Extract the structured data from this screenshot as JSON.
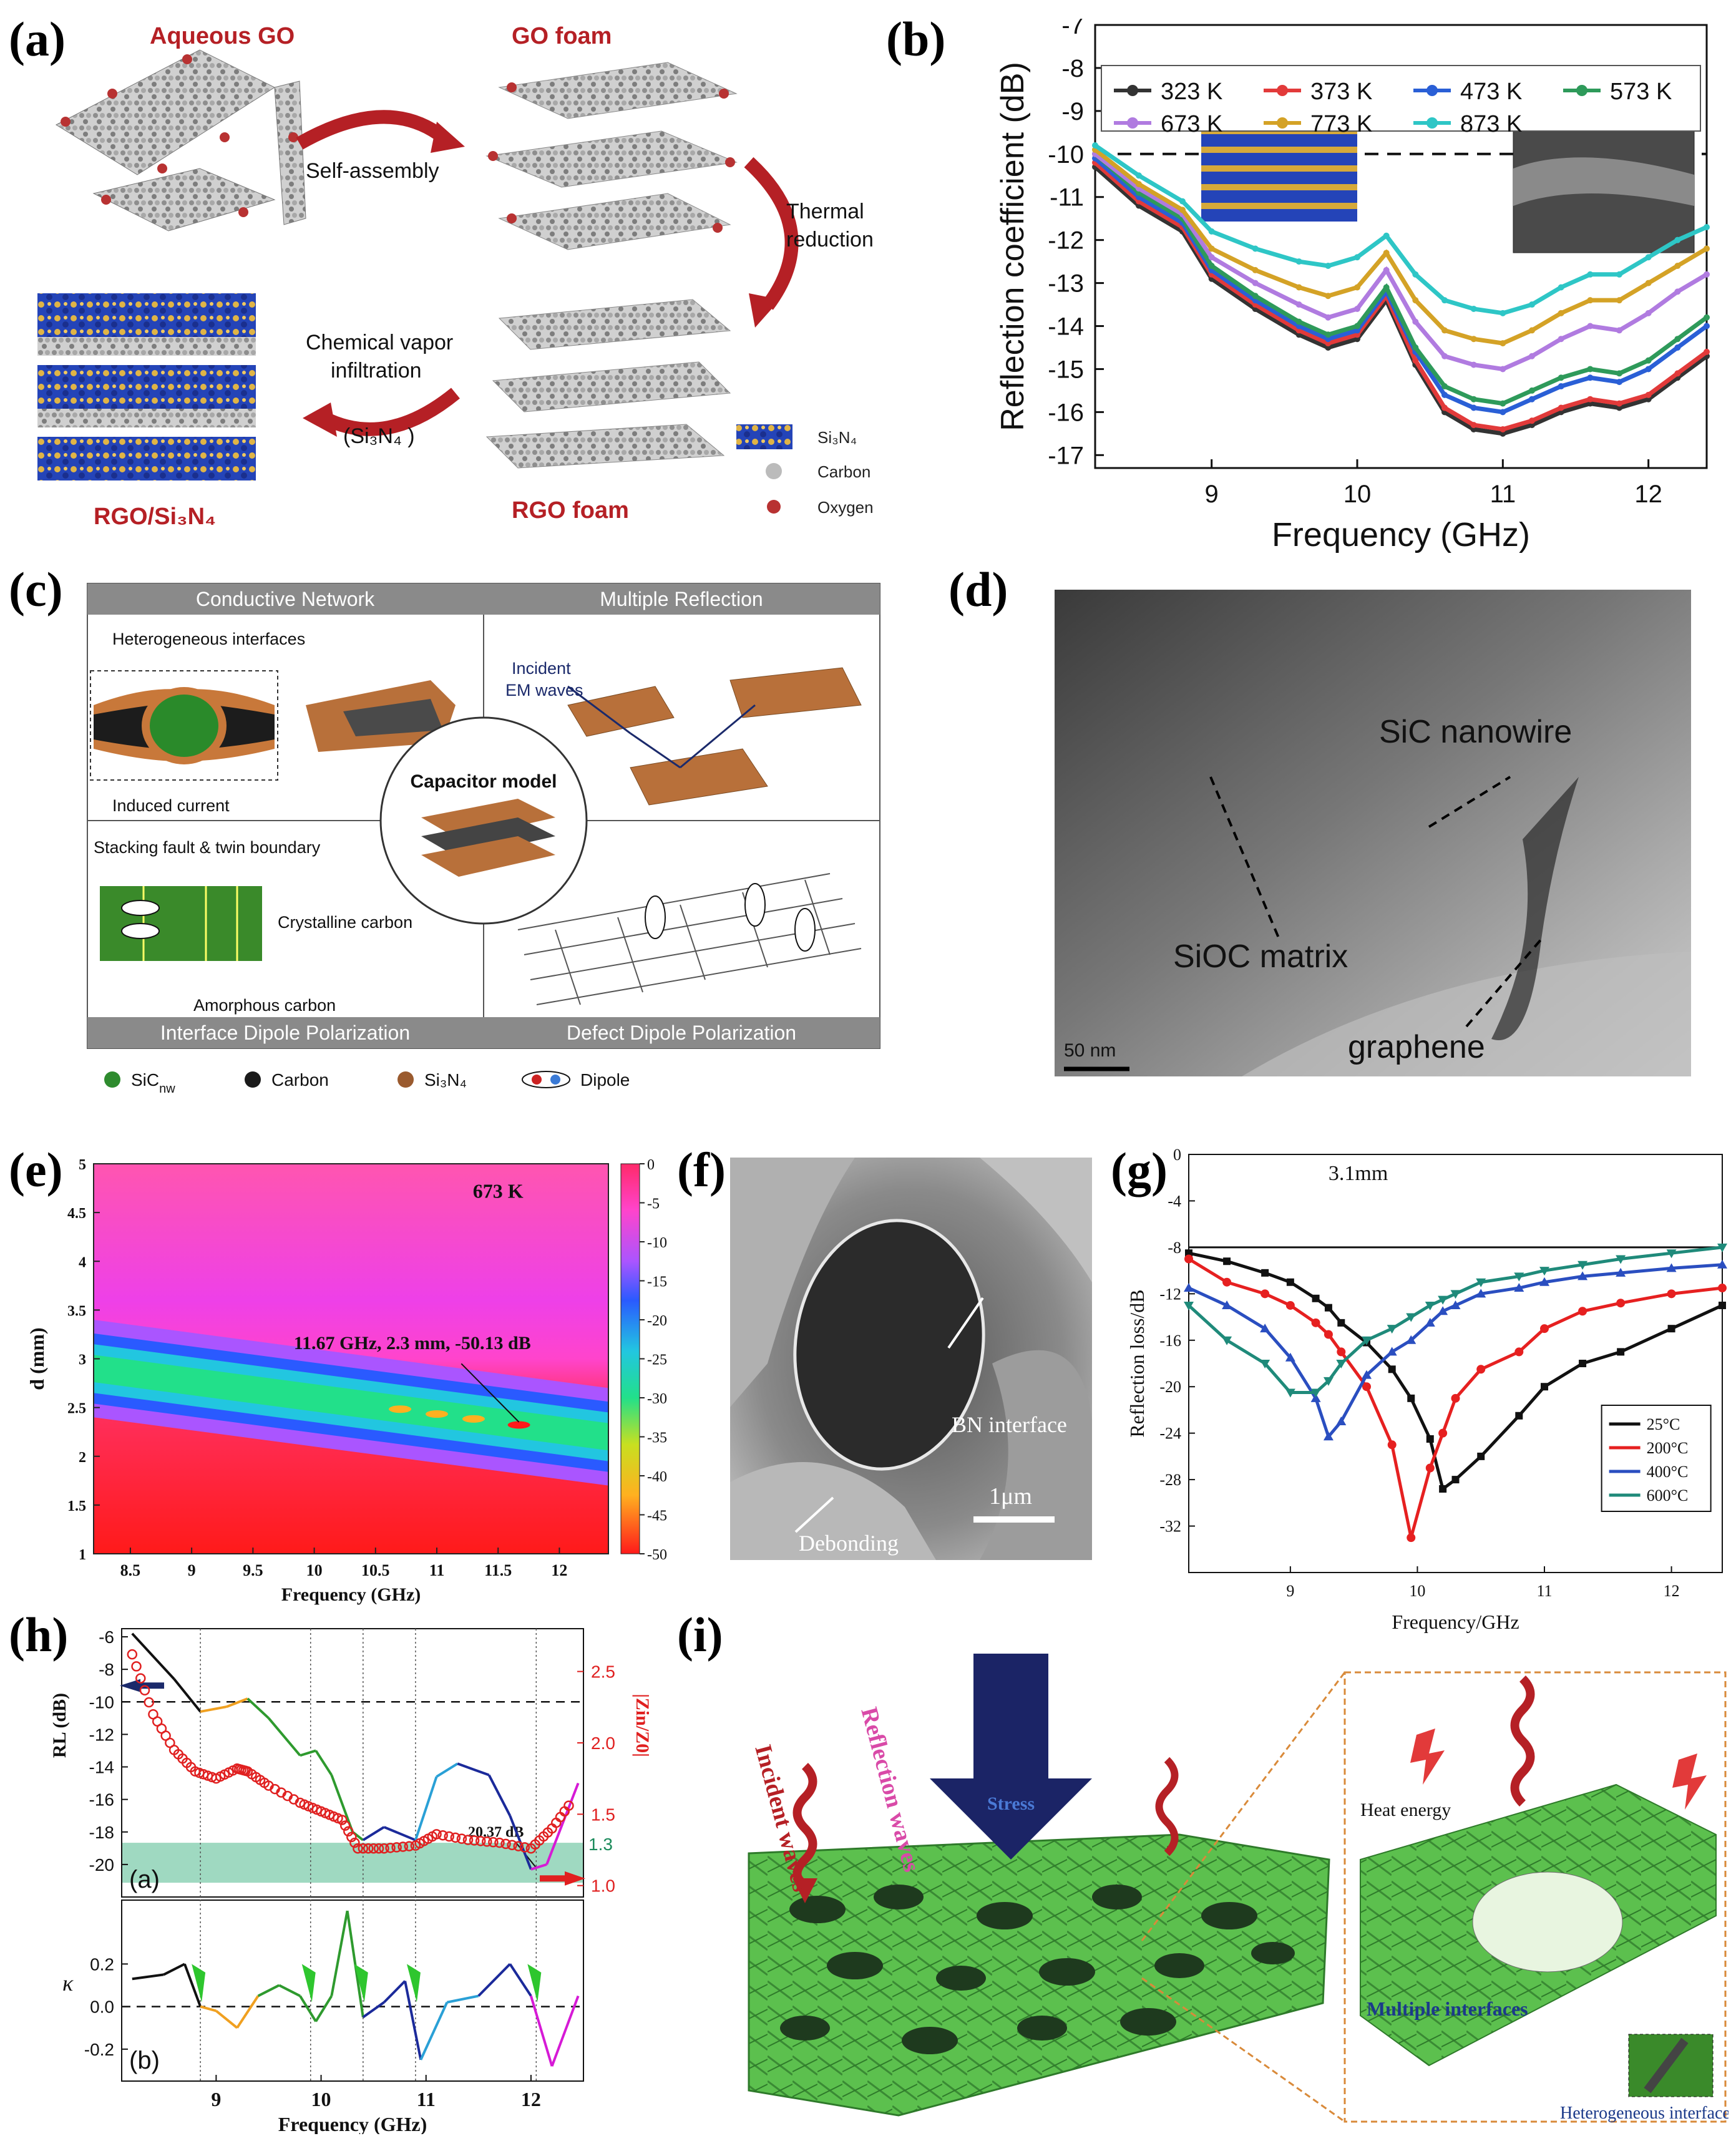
{
  "labels": {
    "a": "(a)",
    "b": "(b)",
    "c": "(c)",
    "d": "(d)",
    "e": "(e)",
    "f": "(f)",
    "g": "(g)",
    "h": "(h)",
    "i": "(i)"
  },
  "colors": {
    "red": "#b52025",
    "si_blue": "#1b3fa8",
    "si_gold": "#d6a93a",
    "carbon": "#9e9e9e",
    "oxygen": "#b83232",
    "green": "#53b84c",
    "navy": "#1b2a6b"
  },
  "panel_a": {
    "aqueous_go": "Aqueous GO",
    "go_foam": "GO foam",
    "self_assembly": "Self-assembly",
    "thermal": "Thermal",
    "reduction": "reduction",
    "cvi_line1": "Chemical vapor",
    "cvi_line2": "infiltration",
    "cvi_line3": "(Si₃N₄ )",
    "rgo_foam": "RGO foam",
    "rgo_si3n4": "RGO/Si₃N₄",
    "legend": [
      {
        "label": "Si₃N₄",
        "icon": "si3n4-lattice-icon"
      },
      {
        "label": "Carbon",
        "icon": "carbon-atom-icon"
      },
      {
        "label": "Oxygen",
        "icon": "oxygen-atom-icon"
      }
    ]
  },
  "panel_c": {
    "conductive": "Conductive Network",
    "multiple": "Multiple Reflection",
    "interface_dipole": "Interface Dipole Polarization",
    "defect_dipole": "Defect Dipole Polarization",
    "heterogeneous": "Heterogeneous interfaces",
    "induced": "Induced current",
    "incident_1": "Incident",
    "incident_2": "EM waves",
    "capacitor": "Capacitor model",
    "stacking": "Stacking fault & twin boundary",
    "crystalline": "Crystalline carbon",
    "amorphous": "Amorphous carbon",
    "legend": [
      {
        "label": "SiC",
        "sub": "nw",
        "color": "#2e8b2e"
      },
      {
        "label": "Carbon",
        "sub": "",
        "color": "#1a1a1a"
      },
      {
        "label": "Si₃N₄",
        "sub": "",
        "color": "#9a5a2e"
      },
      {
        "label": "Dipole",
        "sub": "",
        "color": "#c22"
      }
    ]
  },
  "panel_d": {
    "sic_nanowire": "SiC nanowire",
    "sioc_matrix": "SiOC matrix",
    "graphene": "graphene",
    "scale": "50 nm"
  },
  "panel_f": {
    "bn_interface": "BN interface",
    "debonding": "Debonding",
    "scale": "1μm"
  },
  "panel_i": {
    "incident": "Incident waves",
    "reflection": "Reflection waves",
    "stress": "Stress",
    "heat": "Heat energy",
    "multiple": "Multiple interfaces",
    "heterogeneous": "Heterogeneous interface"
  },
  "chart_data": [
    {
      "id": "b",
      "type": "line",
      "title": "",
      "xlabel": "Frequency (GHz)",
      "ylabel": "Reflection coefficient (dB)",
      "xlim": [
        8.2,
        12.4
      ],
      "ylim": [
        -17.3,
        -7
      ],
      "xticks": [
        "9",
        "10",
        "11",
        "12"
      ],
      "yticks": [
        "-7",
        "-8",
        "-9",
        "-10",
        "-11",
        "-12",
        "-13",
        "-14",
        "-15",
        "-16",
        "-17"
      ],
      "threshold": -10,
      "x": [
        8.2,
        8.5,
        8.8,
        9.0,
        9.3,
        9.6,
        9.8,
        10.0,
        10.2,
        10.4,
        10.6,
        10.8,
        11.0,
        11.2,
        11.4,
        11.6,
        11.8,
        12.0,
        12.2,
        12.4
      ],
      "series": [
        {
          "name": "323 K",
          "color": "#333333",
          "values": [
            -10.3,
            -11.2,
            -11.8,
            -12.9,
            -13.6,
            -14.2,
            -14.5,
            -14.3,
            -13.4,
            -14.9,
            -16.0,
            -16.4,
            -16.5,
            -16.3,
            -16.0,
            -15.8,
            -15.9,
            -15.7,
            -15.2,
            -14.7
          ]
        },
        {
          "name": "373 K",
          "color": "#e23a3a",
          "values": [
            -10.2,
            -11.1,
            -11.7,
            -12.8,
            -13.5,
            -14.1,
            -14.4,
            -14.2,
            -13.3,
            -14.8,
            -15.9,
            -16.3,
            -16.4,
            -16.2,
            -15.9,
            -15.7,
            -15.8,
            -15.6,
            -15.1,
            -14.6
          ]
        },
        {
          "name": "473 K",
          "color": "#2a5fd6",
          "values": [
            -10.1,
            -11.0,
            -11.6,
            -12.7,
            -13.4,
            -14.0,
            -14.3,
            -14.1,
            -13.2,
            -14.6,
            -15.6,
            -15.9,
            -16.0,
            -15.7,
            -15.4,
            -15.2,
            -15.3,
            -15.0,
            -14.5,
            -14.0
          ]
        },
        {
          "name": "573 K",
          "color": "#2e9a5a",
          "values": [
            -10.0,
            -10.9,
            -11.5,
            -12.6,
            -13.3,
            -13.9,
            -14.2,
            -14.0,
            -13.1,
            -14.5,
            -15.4,
            -15.7,
            -15.8,
            -15.5,
            -15.2,
            -15.0,
            -15.1,
            -14.8,
            -14.3,
            -13.8
          ]
        },
        {
          "name": "673 K",
          "color": "#b07be0",
          "values": [
            -10.0,
            -10.8,
            -11.4,
            -12.4,
            -13.0,
            -13.5,
            -13.8,
            -13.6,
            -12.7,
            -13.9,
            -14.7,
            -14.9,
            -15.0,
            -14.7,
            -14.3,
            -14.0,
            -14.1,
            -13.7,
            -13.2,
            -12.8
          ]
        },
        {
          "name": "773 K",
          "color": "#d4a226",
          "values": [
            -9.9,
            -10.7,
            -11.3,
            -12.2,
            -12.7,
            -13.1,
            -13.3,
            -13.1,
            -12.3,
            -13.4,
            -14.1,
            -14.3,
            -14.4,
            -14.1,
            -13.7,
            -13.4,
            -13.4,
            -13.0,
            -12.6,
            -12.2
          ]
        },
        {
          "name": "873 K",
          "color": "#2ec6c6",
          "values": [
            -9.8,
            -10.5,
            -11.1,
            -11.8,
            -12.2,
            -12.5,
            -12.6,
            -12.4,
            -11.9,
            -12.8,
            -13.4,
            -13.6,
            -13.7,
            -13.5,
            -13.1,
            -12.8,
            -12.8,
            -12.4,
            -12.0,
            -11.7
          ]
        }
      ]
    },
    {
      "id": "e",
      "type": "heatmap",
      "title": "673 K",
      "xlabel": "Frequency (GHz)",
      "ylabel": "d (mm)",
      "xlim": [
        8.2,
        12.4
      ],
      "ylim": [
        1,
        5
      ],
      "xticks": [
        "8.5",
        "9",
        "9.5",
        "10",
        "10.5",
        "11",
        "11.5",
        "12"
      ],
      "yticks": [
        "1",
        "1.5",
        "2",
        "2.5",
        "3",
        "3.5",
        "4",
        "4.5",
        "5"
      ],
      "colorbar": [
        "0",
        "-5",
        "-10",
        "-15",
        "-20",
        "-25",
        "-30",
        "-35",
        "-40",
        "-45",
        "-50"
      ],
      "annotation": "11.67 GHz, 2.3 mm, -50.13 dB",
      "minimum": {
        "x": 11.67,
        "y": 2.3,
        "value": -50.13
      }
    },
    {
      "id": "g",
      "type": "line",
      "title": "3.1mm",
      "xlabel": "Frequency/GHz",
      "ylabel": "Reflection loss/dB",
      "xlim": [
        8.2,
        12.4
      ],
      "ylim": [
        -36,
        0
      ],
      "xticks": [
        "9",
        "10",
        "11",
        "12"
      ],
      "yticks": [
        "0",
        "-4",
        "-8",
        "-12",
        "-16",
        "-20",
        "-24",
        "-28",
        "-32"
      ],
      "threshold": -8,
      "x": [
        8.2,
        8.5,
        8.8,
        9.0,
        9.2,
        9.3,
        9.4,
        9.6,
        9.8,
        9.95,
        10.1,
        10.2,
        10.3,
        10.5,
        10.8,
        11.0,
        11.3,
        11.6,
        12.0,
        12.4
      ],
      "series": [
        {
          "name": "25°C",
          "color": "#111111",
          "values": [
            -8.5,
            -9.2,
            -10.2,
            -11.0,
            -12.4,
            -13.2,
            -14.5,
            -16.2,
            -18.5,
            -21.0,
            -24.5,
            -28.8,
            -28.0,
            -26.0,
            -22.5,
            -20.0,
            -18.0,
            -17.0,
            -15.0,
            -13.0
          ]
        },
        {
          "name": "200°C",
          "color": "#e62020",
          "values": [
            -9.0,
            -11.0,
            -12.0,
            -13.0,
            -14.5,
            -15.5,
            -17.0,
            -20.0,
            -25.0,
            -33.0,
            -27.0,
            -24.0,
            -21.0,
            -18.5,
            -17.0,
            -15.0,
            -13.5,
            -12.8,
            -12.0,
            -11.5
          ]
        },
        {
          "name": "400°C",
          "color": "#2a4ec0",
          "values": [
            -11.5,
            -13.0,
            -15.0,
            -17.5,
            -21.0,
            -24.3,
            -23.0,
            -19.0,
            -17.0,
            -16.0,
            -14.5,
            -13.5,
            -13.0,
            -12.0,
            -11.5,
            -11.0,
            -10.5,
            -10.2,
            -9.8,
            -9.5
          ]
        },
        {
          "name": "600°C",
          "color": "#1f8a7a",
          "values": [
            -13.0,
            -16.0,
            -18.0,
            -20.5,
            -20.5,
            -19.5,
            -18.0,
            -16.0,
            -15.0,
            -14.0,
            -13.0,
            -12.5,
            -12.0,
            -11.0,
            -10.5,
            -10.0,
            -9.5,
            -9.0,
            -8.5,
            -8.0
          ]
        }
      ]
    },
    {
      "id": "h",
      "type": "line",
      "title": "",
      "xlabel": "Frequency (GHz)",
      "ylabel_left": "RL (dB)",
      "ylabel_right": "|Zin/Z0|",
      "ylabel_lower": "κ",
      "xlim": [
        8.1,
        12.5
      ],
      "xticks": [
        "9",
        "10",
        "11",
        "12"
      ],
      "yticks_left": [
        "-6",
        "-8",
        "-10",
        "-12",
        "-14",
        "-16",
        "-18",
        "-20"
      ],
      "yticks_right": [
        "1.0",
        "1.5",
        "2.0",
        "2.5"
      ],
      "yticks_lower": [
        "0.2",
        "0.0",
        "-0.2"
      ],
      "annotation": "20.37 dB",
      "band_value": "1.3",
      "sub_a": "(a)",
      "sub_b": "(b)",
      "rl": {
        "x": [
          8.2,
          8.6,
          8.85,
          9.1,
          9.3,
          9.5,
          9.8,
          9.95,
          10.1,
          10.3,
          10.4,
          10.6,
          10.9,
          11.1,
          11.3,
          11.6,
          11.8,
          12.0,
          12.15,
          12.3,
          12.45
        ],
        "values": [
          -5.8,
          -8.6,
          -10.6,
          -10.3,
          -9.8,
          -11.0,
          -13.3,
          -13.0,
          -14.5,
          -18.0,
          -18.5,
          -17.7,
          -18.5,
          -14.6,
          -13.8,
          -14.5,
          -17.0,
          -20.3,
          -20.0,
          -17.5,
          -15.0
        ]
      },
      "zin": {
        "x": [
          8.2,
          8.4,
          8.6,
          8.8,
          9.0,
          9.2,
          9.3,
          9.5,
          9.8,
          10.0,
          10.2,
          10.35,
          10.6,
          10.9,
          11.1,
          11.4,
          11.7,
          12.0,
          12.2,
          12.4
        ],
        "values": [
          2.62,
          2.2,
          1.95,
          1.8,
          1.75,
          1.82,
          1.8,
          1.7,
          1.58,
          1.52,
          1.46,
          1.26,
          1.26,
          1.28,
          1.36,
          1.32,
          1.3,
          1.26,
          1.4,
          1.6
        ]
      },
      "kappa": {
        "x": [
          8.2,
          8.5,
          8.7,
          8.85,
          9.0,
          9.2,
          9.4,
          9.6,
          9.8,
          9.95,
          10.1,
          10.25,
          10.4,
          10.6,
          10.8,
          10.95,
          11.2,
          11.5,
          11.8,
          12.0,
          12.2,
          12.45
        ],
        "values": [
          0.13,
          0.15,
          0.2,
          0.0,
          -0.02,
          -0.1,
          0.05,
          0.1,
          0.05,
          -0.07,
          0.05,
          0.45,
          -0.05,
          0.02,
          0.12,
          -0.25,
          0.02,
          0.05,
          0.2,
          0.05,
          -0.28,
          0.05
        ]
      }
    }
  ]
}
